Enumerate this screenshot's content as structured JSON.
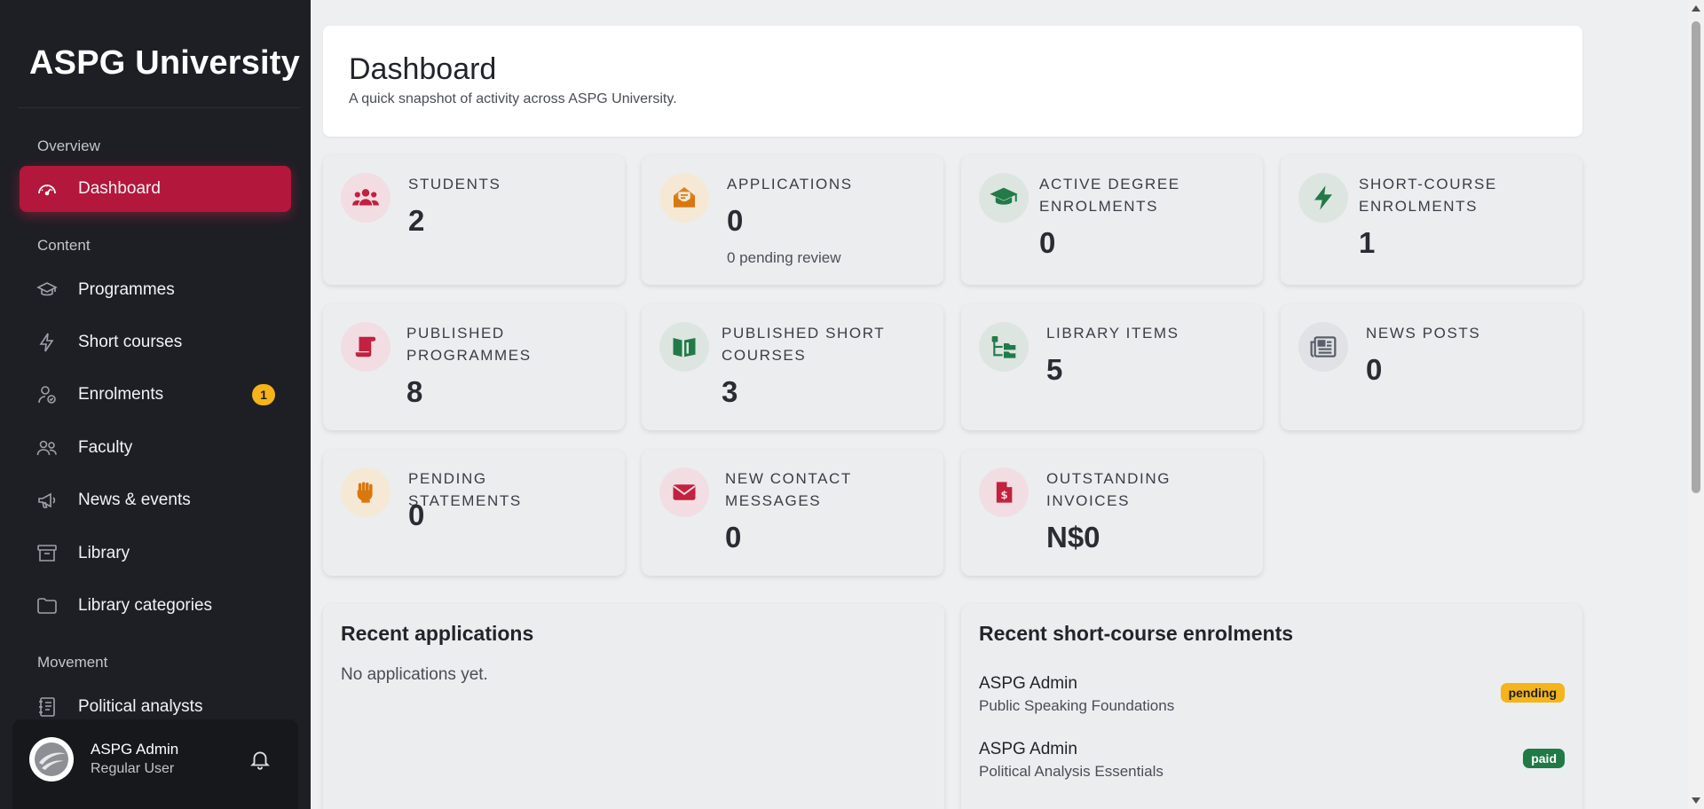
{
  "sidebar": {
    "brand": "ASPG University",
    "sections": {
      "overview": "Overview",
      "content": "Content",
      "movement": "Movement"
    },
    "items": [
      {
        "label": "Dashboard",
        "icon": "gauge-icon",
        "active": true
      },
      {
        "label": "Programmes",
        "icon": "graduation-cap-icon"
      },
      {
        "label": "Short courses",
        "icon": "bolt-icon"
      },
      {
        "label": "Enrolments",
        "icon": "user-check-icon",
        "badge": "1"
      },
      {
        "label": "Faculty",
        "icon": "users-icon"
      },
      {
        "label": "News & events",
        "icon": "megaphone-icon"
      },
      {
        "label": "Library",
        "icon": "archive-icon"
      },
      {
        "label": "Library categories",
        "icon": "folder-icon"
      },
      {
        "label": "Political analysts",
        "icon": "notebook-icon"
      }
    ],
    "user": {
      "name": "ASPG Admin",
      "role": "Regular User"
    }
  },
  "header": {
    "title": "Dashboard",
    "subtitle": "A quick snapshot of activity across ASPG University."
  },
  "stats": [
    {
      "label": "Students",
      "value": "2",
      "icon": "users-icon",
      "tone": "red"
    },
    {
      "label": "Applications",
      "value": "0",
      "note": "0 pending review",
      "icon": "envelope-open-icon",
      "tone": "orange"
    },
    {
      "label": "Active degree enrolments",
      "value": "0",
      "icon": "graduation-cap-icon",
      "tone": "green"
    },
    {
      "label": "Short-course enrolments",
      "value": "1",
      "icon": "bolt-icon",
      "tone": "green"
    },
    {
      "label": "Published programmes",
      "value": "8",
      "icon": "scroll-icon",
      "tone": "red"
    },
    {
      "label": "Published short courses",
      "value": "3",
      "icon": "book-open-icon",
      "tone": "green"
    },
    {
      "label": "Library items",
      "value": "5",
      "icon": "folder-tree-icon",
      "tone": "green"
    },
    {
      "label": "News posts",
      "value": "0",
      "icon": "newspaper-icon",
      "tone": "gray"
    },
    {
      "label": "Pending statements",
      "value": "0",
      "icon": "fist-icon",
      "tone": "orange"
    },
    {
      "label": "New contact messages",
      "value": "0",
      "icon": "envelope-icon",
      "tone": "red"
    },
    {
      "label": "Outstanding invoices",
      "value": "N$0",
      "icon": "invoice-icon",
      "tone": "red"
    }
  ],
  "recent_applications": {
    "title": "Recent applications",
    "empty": "No applications yet."
  },
  "recent_enrolments": {
    "title": "Recent short-course enrolments",
    "rows": [
      {
        "name": "ASPG Admin",
        "course": "Public Speaking Foundations",
        "status": "pending"
      },
      {
        "name": "ASPG Admin",
        "course": "Political Analysis Essentials",
        "status": "paid"
      }
    ]
  },
  "colors": {
    "sidebar_bg": "#1e1f25",
    "accent": "#b3173b",
    "badge": "#f4b41a",
    "paid": "#1f7a45"
  }
}
